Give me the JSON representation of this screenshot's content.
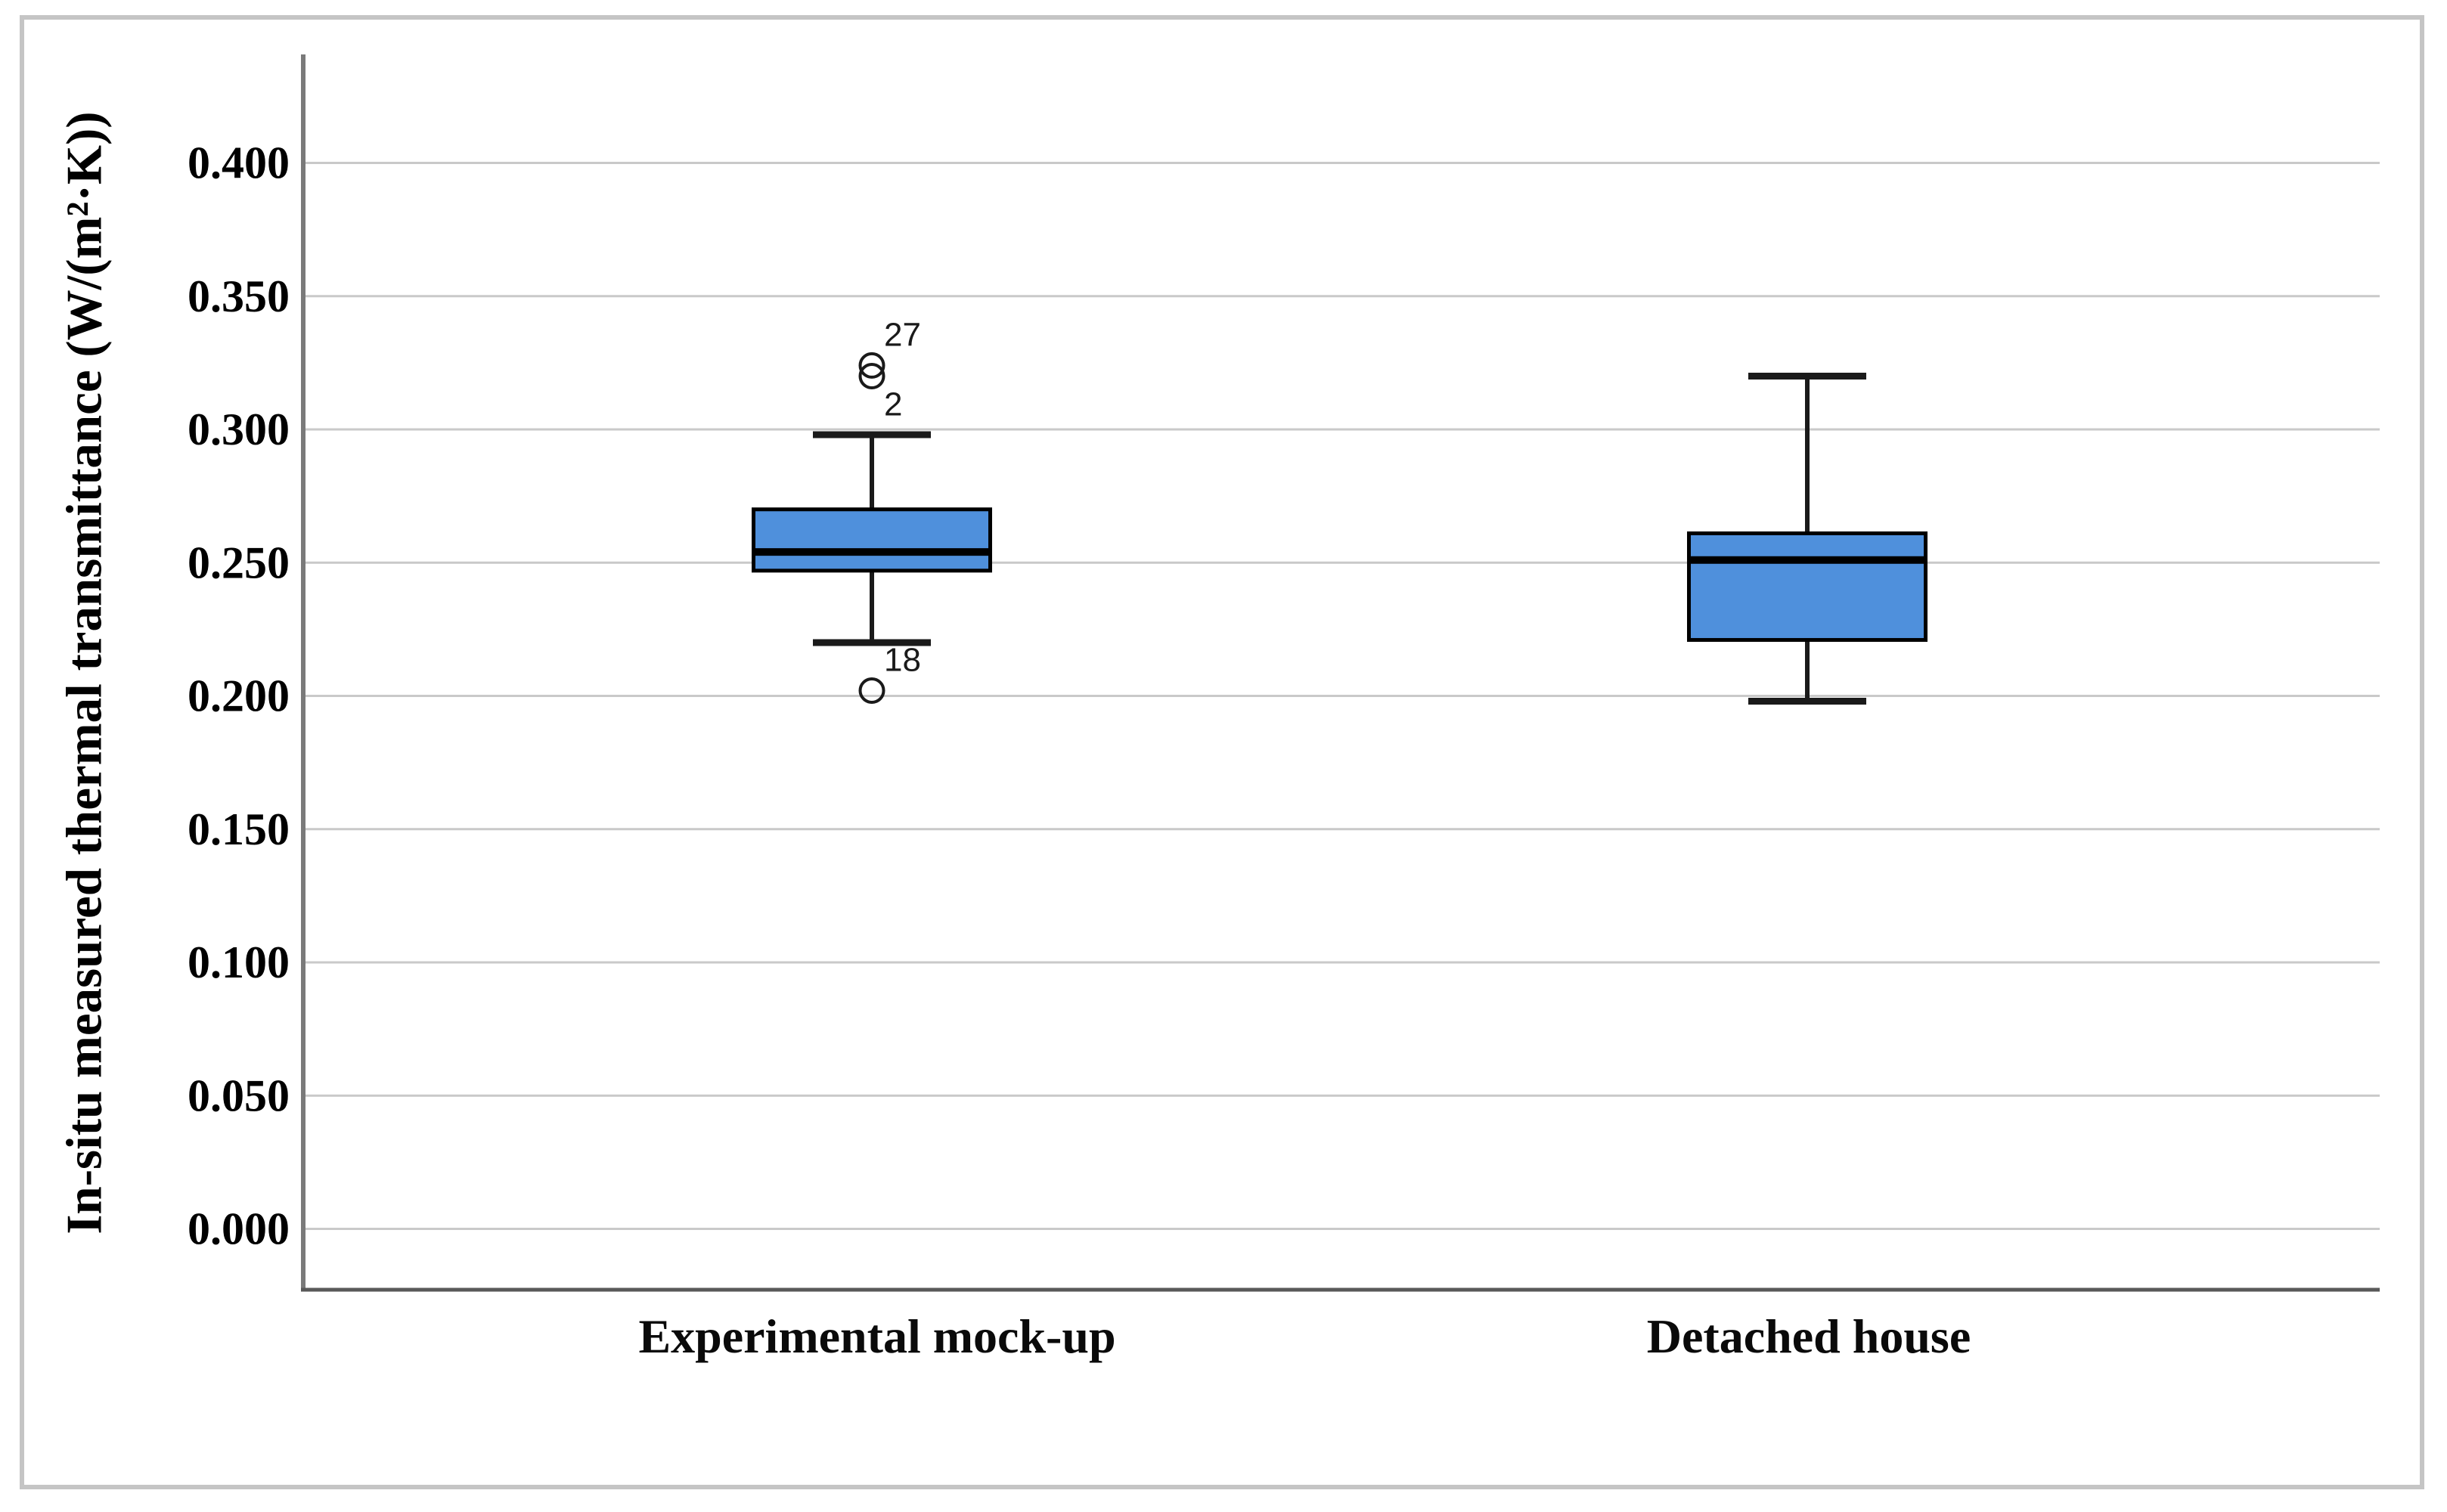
{
  "figure": {
    "background": "#ffffff",
    "border_color": "#c5c5c5"
  },
  "chart_data": {
    "type": "boxplot",
    "title": "",
    "xlabel": "",
    "ylabel": "In-situ measured thermal transmittance (W/(m²·K))",
    "categories": [
      "Experimental mock-up",
      "Detached house"
    ],
    "y_ticks": [
      "0.400",
      "0.350",
      "0.300",
      "0.250",
      "0.200",
      "0.150",
      "0.100",
      "0.050",
      "0.000"
    ],
    "ylim": [
      -0.023,
      0.442
    ],
    "grid": true,
    "legend": "none",
    "series": [
      {
        "category": "Experimental mock-up",
        "whisker_low": 0.22,
        "q1": 0.247,
        "median": 0.254,
        "q3": 0.27,
        "whisker_high": 0.298,
        "outliers": [
          {
            "label": "27",
            "value": 0.324,
            "label_side": "above"
          },
          {
            "label": "2",
            "value": 0.32,
            "label_side": "below"
          },
          {
            "label": "18",
            "value": 0.202,
            "label_side": "above"
          }
        ]
      },
      {
        "category": "Detached house",
        "whisker_low": 0.198,
        "q1": 0.221,
        "median": 0.251,
        "q3": 0.261,
        "whisker_high": 0.32,
        "outliers": []
      }
    ],
    "box_fill": "#4f90dc",
    "box_stroke": "#000000",
    "whisker_color": "#1a1a1a",
    "median_color": "#000000",
    "grid_color": "#c9c9c9",
    "y_axis_color": "#7a7a7a",
    "x_axis_color": "#595959",
    "tick_label_color": "#000000",
    "outlier_label_color": "#1a1a1a"
  }
}
